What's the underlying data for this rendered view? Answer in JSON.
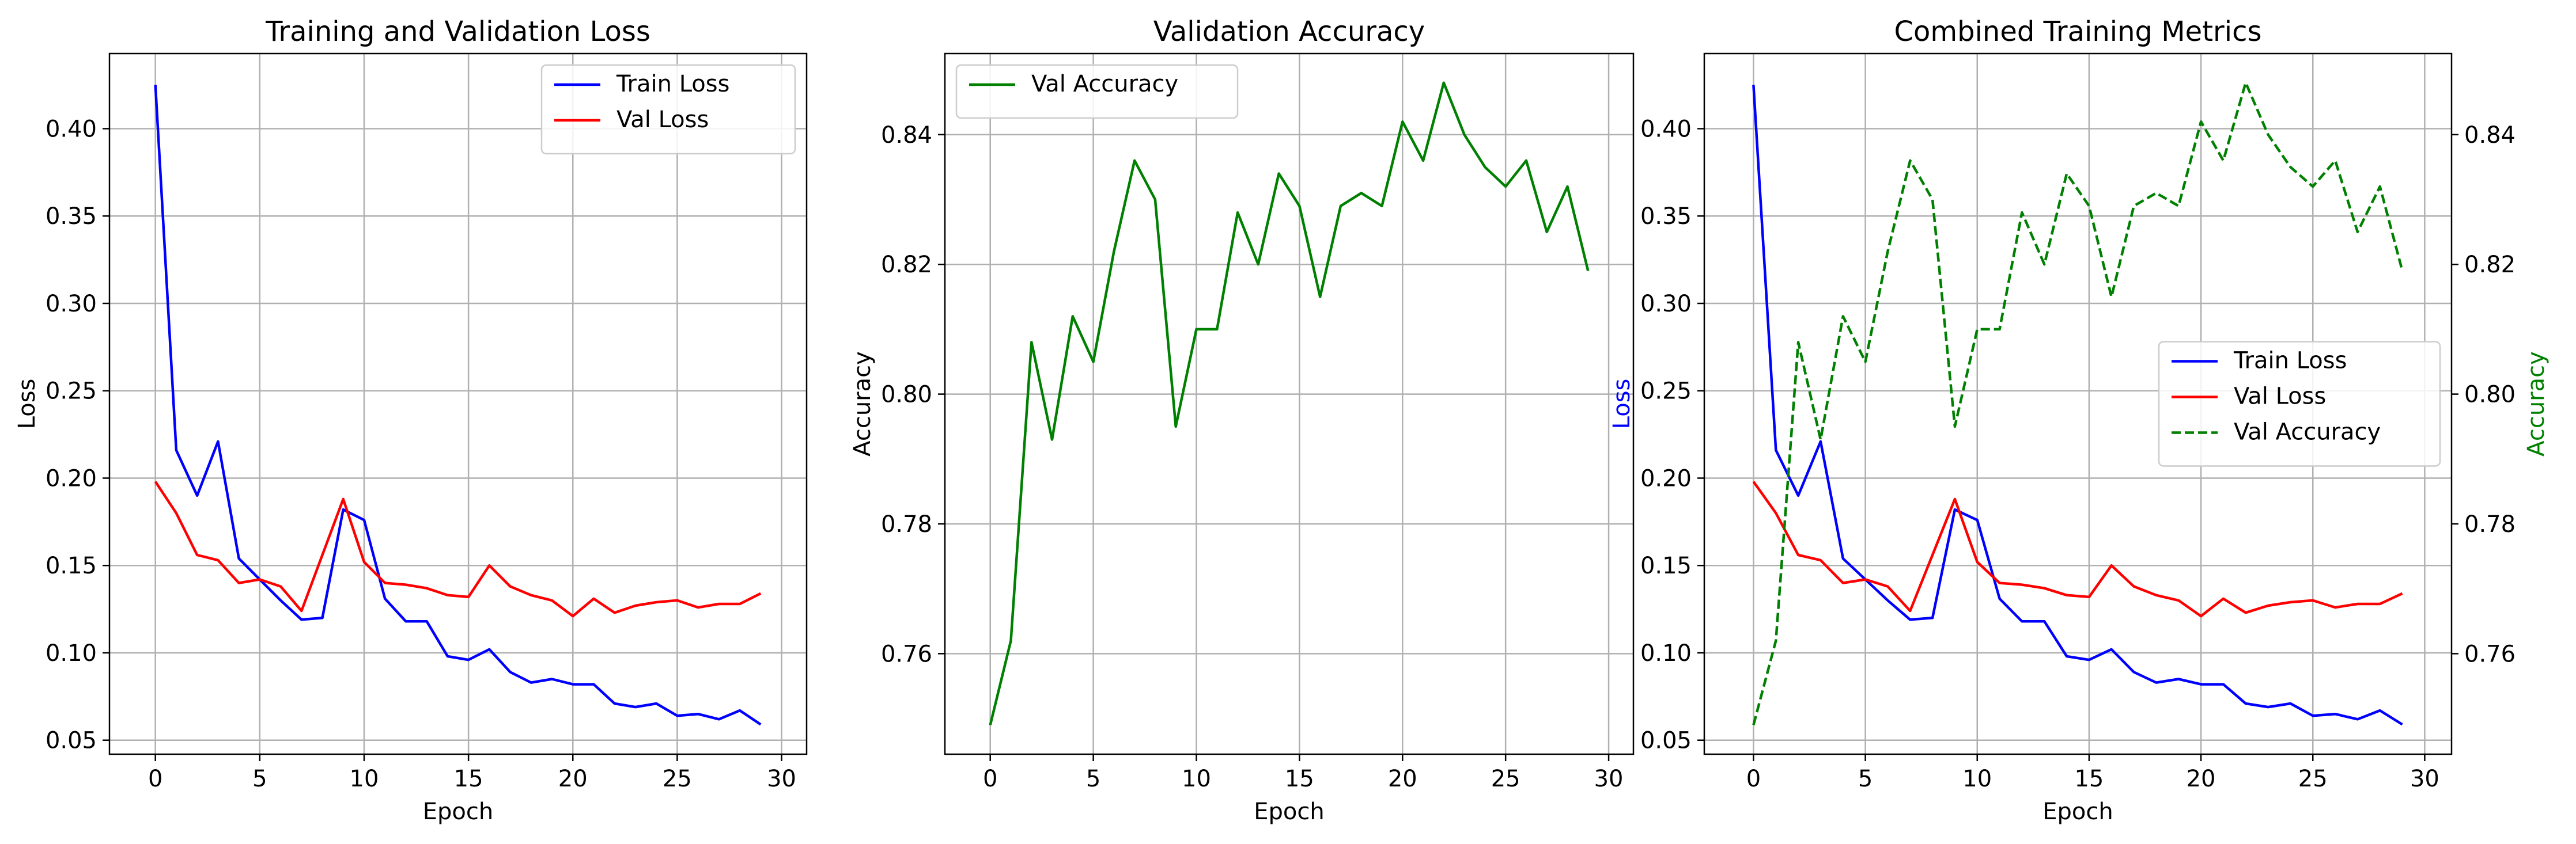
{
  "chart_data": [
    {
      "type": "line",
      "title": "Training and Validation Loss",
      "xlabel": "Epoch",
      "ylabel": "Loss",
      "xlim": [
        -2.2,
        31.2
      ],
      "ylim": [
        0.042,
        0.443
      ],
      "xticks": [
        0,
        5,
        10,
        15,
        20,
        25,
        30
      ],
      "yticks": [
        0.05,
        0.1,
        0.15,
        0.2,
        0.25,
        0.3,
        0.35,
        0.4
      ],
      "grid": true,
      "legend": "top-right",
      "x": [
        0,
        1,
        2,
        3,
        4,
        5,
        6,
        7,
        8,
        9,
        10,
        11,
        12,
        13,
        14,
        15,
        16,
        17,
        18,
        19,
        20,
        21,
        22,
        23,
        24,
        25,
        26,
        27,
        28,
        29
      ],
      "series": [
        {
          "name": "Train Loss",
          "color": "#0000ff",
          "dash": "solid",
          "axis": "left",
          "values": [
            0.425,
            0.216,
            0.19,
            0.221,
            0.154,
            0.142,
            0.13,
            0.119,
            0.12,
            0.182,
            0.176,
            0.131,
            0.118,
            0.118,
            0.098,
            0.096,
            0.102,
            0.089,
            0.083,
            0.085,
            0.082,
            0.082,
            0.071,
            0.069,
            0.071,
            0.064,
            0.065,
            0.062,
            0.067,
            0.059
          ]
        },
        {
          "name": "Val Loss",
          "color": "#ff0000",
          "dash": "solid",
          "axis": "left",
          "values": [
            0.198,
            0.18,
            0.156,
            0.153,
            0.14,
            0.142,
            0.138,
            0.124,
            0.156,
            0.188,
            0.152,
            0.14,
            0.139,
            0.137,
            0.133,
            0.132,
            0.15,
            0.138,
            0.133,
            0.13,
            0.121,
            0.131,
            0.123,
            0.127,
            0.129,
            0.13,
            0.126,
            0.128,
            0.128,
            0.134
          ]
        }
      ]
    },
    {
      "type": "line",
      "title": "Validation Accuracy",
      "xlabel": "Epoch",
      "ylabel": "Accuracy",
      "xlim": [
        -2.2,
        31.2
      ],
      "ylim": [
        0.7445,
        0.8525
      ],
      "xticks": [
        0,
        5,
        10,
        15,
        20,
        25,
        30
      ],
      "yticks": [
        0.76,
        0.78,
        0.8,
        0.82,
        0.84
      ],
      "grid": true,
      "legend": "top-left",
      "x": [
        0,
        1,
        2,
        3,
        4,
        5,
        6,
        7,
        8,
        9,
        10,
        11,
        12,
        13,
        14,
        15,
        16,
        17,
        18,
        19,
        20,
        21,
        22,
        23,
        24,
        25,
        26,
        27,
        28,
        29
      ],
      "series": [
        {
          "name": "Val Accuracy",
          "color": "#008000",
          "dash": "solid",
          "axis": "left",
          "values": [
            0.749,
            0.762,
            0.808,
            0.793,
            0.812,
            0.805,
            0.822,
            0.836,
            0.83,
            0.795,
            0.81,
            0.81,
            0.828,
            0.82,
            0.834,
            0.829,
            0.815,
            0.829,
            0.831,
            0.829,
            0.842,
            0.836,
            0.848,
            0.84,
            0.835,
            0.832,
            0.836,
            0.825,
            0.832,
            0.819
          ]
        }
      ]
    },
    {
      "type": "line",
      "title": "Combined Training Metrics",
      "xlabel": "Epoch",
      "ylabel": "Loss",
      "ylabel_color": "#0000ff",
      "y2label": "Accuracy",
      "y2label_color": "#008000",
      "xlim": [
        -2.2,
        31.2
      ],
      "ylim": [
        0.042,
        0.443
      ],
      "y2lim": [
        0.7445,
        0.8525
      ],
      "xticks": [
        0,
        5,
        10,
        15,
        20,
        25,
        30
      ],
      "yticks": [
        0.05,
        0.1,
        0.15,
        0.2,
        0.25,
        0.3,
        0.35,
        0.4
      ],
      "y2ticks": [
        0.76,
        0.78,
        0.8,
        0.82,
        0.84
      ],
      "grid": true,
      "legend": "center-right",
      "x": [
        0,
        1,
        2,
        3,
        4,
        5,
        6,
        7,
        8,
        9,
        10,
        11,
        12,
        13,
        14,
        15,
        16,
        17,
        18,
        19,
        20,
        21,
        22,
        23,
        24,
        25,
        26,
        27,
        28,
        29
      ],
      "series": [
        {
          "name": "Train Loss",
          "color": "#0000ff",
          "dash": "solid",
          "axis": "left",
          "values": [
            0.425,
            0.216,
            0.19,
            0.221,
            0.154,
            0.142,
            0.13,
            0.119,
            0.12,
            0.182,
            0.176,
            0.131,
            0.118,
            0.118,
            0.098,
            0.096,
            0.102,
            0.089,
            0.083,
            0.085,
            0.082,
            0.082,
            0.071,
            0.069,
            0.071,
            0.064,
            0.065,
            0.062,
            0.067,
            0.059
          ]
        },
        {
          "name": "Val Loss",
          "color": "#ff0000",
          "dash": "solid",
          "axis": "left",
          "values": [
            0.198,
            0.18,
            0.156,
            0.153,
            0.14,
            0.142,
            0.138,
            0.124,
            0.156,
            0.188,
            0.152,
            0.14,
            0.139,
            0.137,
            0.133,
            0.132,
            0.15,
            0.138,
            0.133,
            0.13,
            0.121,
            0.131,
            0.123,
            0.127,
            0.129,
            0.13,
            0.126,
            0.128,
            0.128,
            0.134
          ]
        },
        {
          "name": "Val Accuracy",
          "color": "#008000",
          "dash": "dashed",
          "axis": "right",
          "values": [
            0.749,
            0.762,
            0.808,
            0.793,
            0.812,
            0.805,
            0.822,
            0.836,
            0.83,
            0.795,
            0.81,
            0.81,
            0.828,
            0.82,
            0.834,
            0.829,
            0.815,
            0.829,
            0.831,
            0.829,
            0.842,
            0.836,
            0.848,
            0.84,
            0.835,
            0.832,
            0.836,
            0.825,
            0.832,
            0.819
          ]
        }
      ]
    }
  ]
}
